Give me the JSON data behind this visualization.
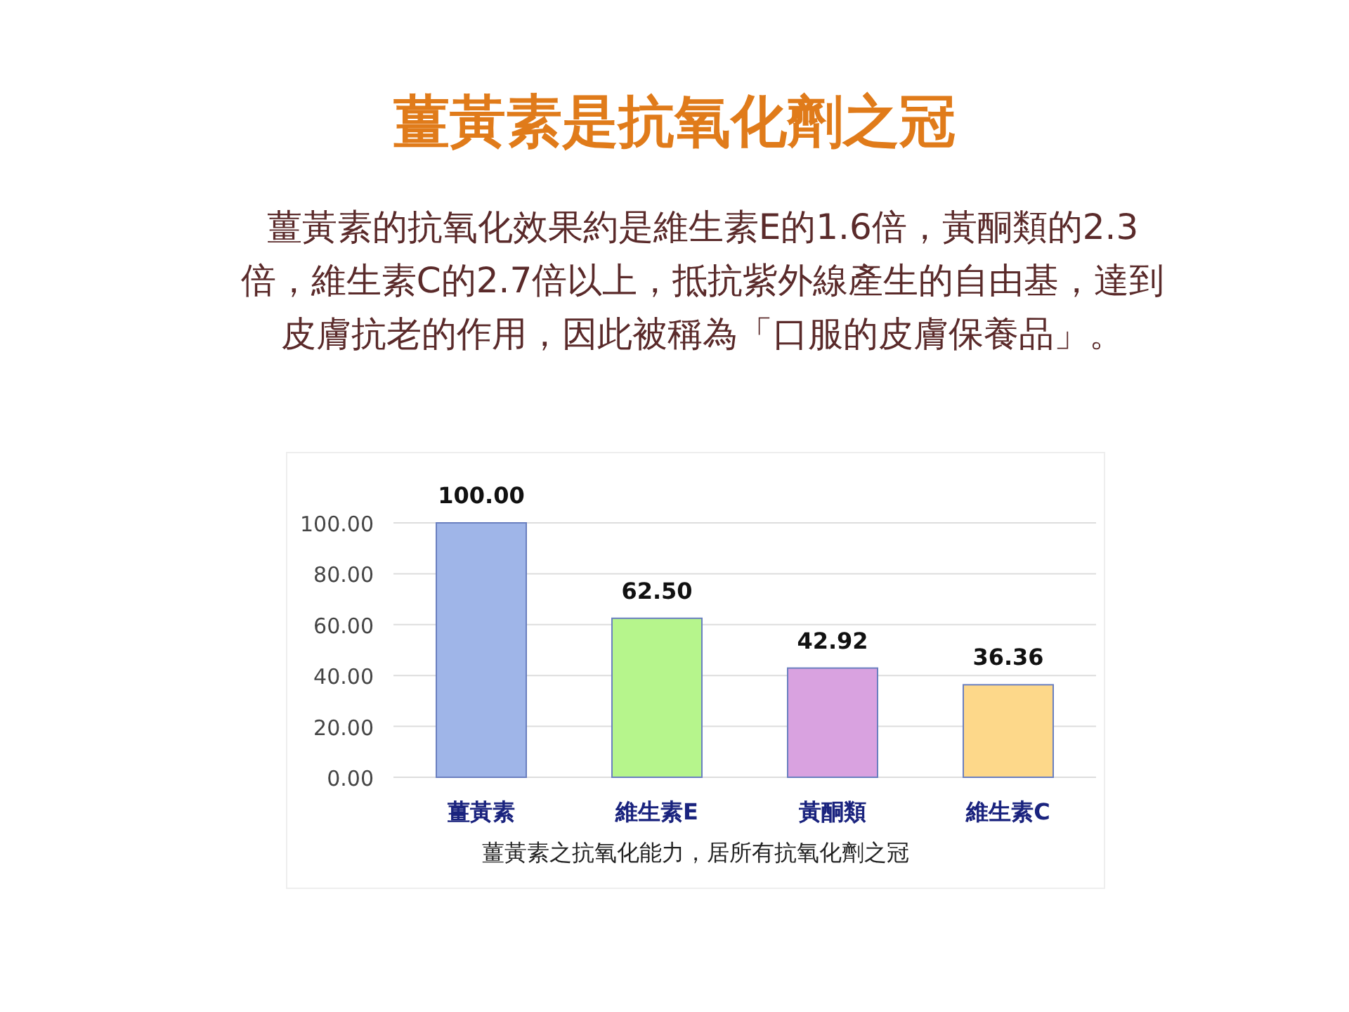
{
  "chart_data": {
    "type": "bar",
    "title": "薑黃素是抗氧化劑之冠",
    "subtitle": "薑黃素的抗氧化效果約是維生素E的1.6倍，黃酮類的2.3倍，維生素C的2.7倍以上，抵抗紫外線產生的自由基，達到皮膚抗老的作用，因此被稱為「口服的皮膚保養品」。",
    "categories": [
      "薑黃素",
      "維生素E",
      "黃酮類",
      "維生素C"
    ],
    "values": [
      100,
      62.5,
      42.92,
      36.36
    ],
    "value_labels": [
      "100.00",
      "62.50",
      "42.92",
      "36.36"
    ],
    "colors": [
      "#9fb5e8",
      "#b6f58c",
      "#d9a2e0",
      "#fdd88a"
    ],
    "ylim": [
      0,
      100
    ],
    "yticks": [
      {
        "value": 0,
        "label": "0.00"
      },
      {
        "value": 20,
        "label": "20.00"
      },
      {
        "value": 40,
        "label": "40.00"
      },
      {
        "value": 60,
        "label": "60.00"
      },
      {
        "value": 80,
        "label": "80.00"
      },
      {
        "value": 100,
        "label": "100.00"
      }
    ],
    "grid": "y",
    "annotations": [
      "薑黃素之抗氧化能力，居所有抗氧化劑之冠"
    ]
  }
}
